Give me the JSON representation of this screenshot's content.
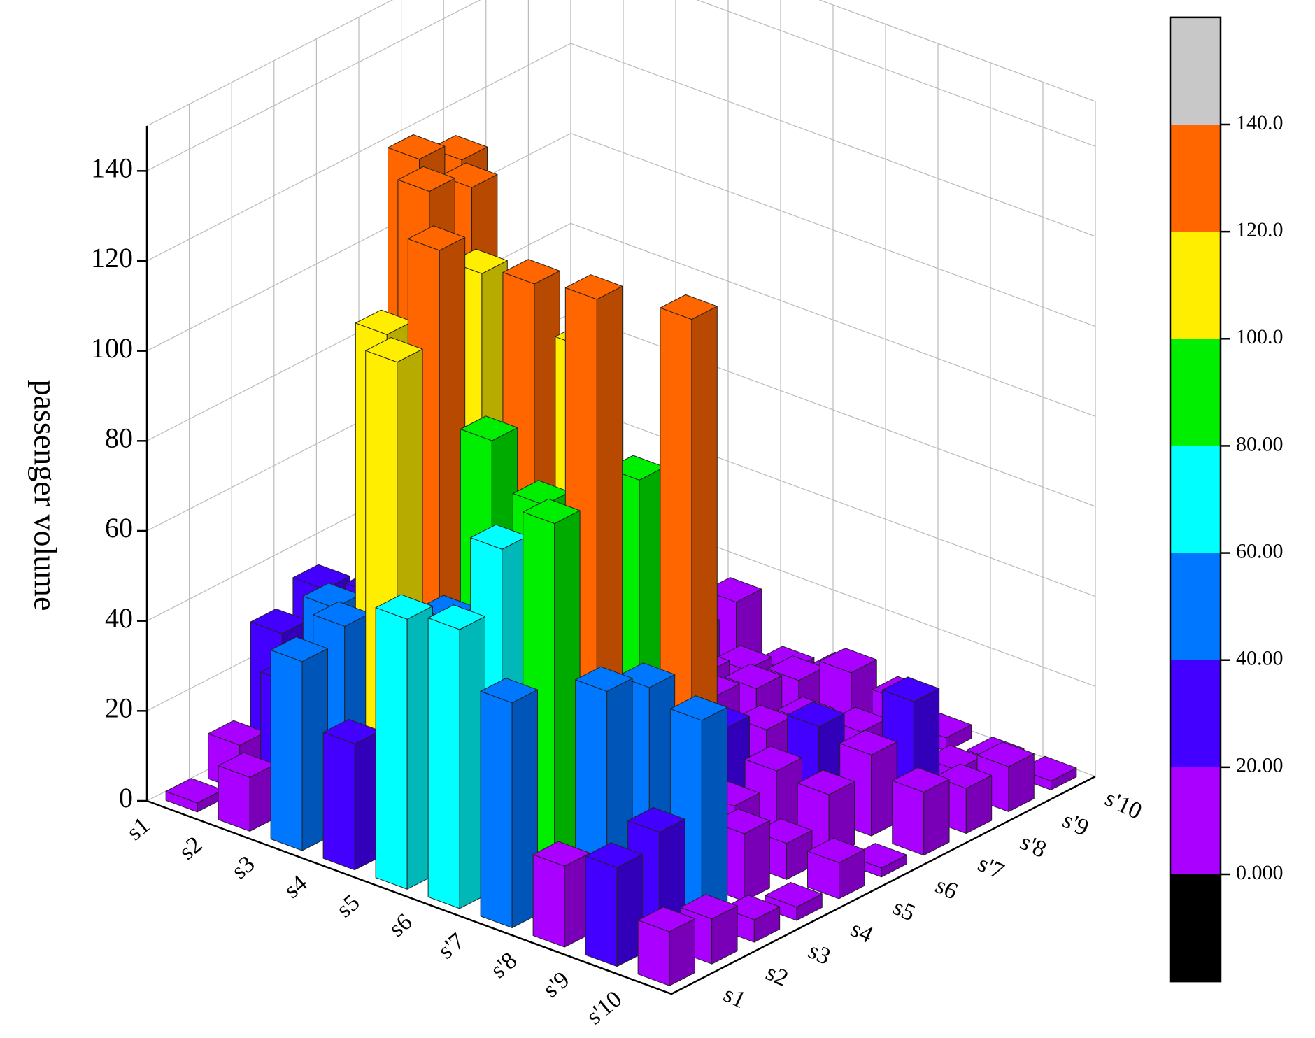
{
  "chart_data": {
    "type": "bar3d",
    "z_label": "passenger volume",
    "row_categories": [
      "s1",
      "s2",
      "s3",
      "s4",
      "s5",
      "s6",
      "s'7",
      "s'8",
      "s'9",
      "s'10"
    ],
    "col_categories": [
      "s1",
      "s2",
      "s3",
      "s4",
      "s5",
      "s6",
      "s'7",
      "s'8",
      "s'9",
      "s'10"
    ],
    "values": [
      [
        2,
        10,
        30,
        35,
        20,
        15,
        18,
        15,
        10,
        5
      ],
      [
        12,
        28,
        40,
        38,
        130,
        125,
        30,
        18,
        12,
        8
      ],
      [
        42,
        45,
        105,
        132,
        128,
        60,
        20,
        15,
        10,
        6
      ],
      [
        28,
        108,
        128,
        118,
        70,
        25,
        18,
        12,
        14,
        16
      ],
      [
        60,
        55,
        90,
        120,
        45,
        20,
        16,
        14,
        10,
        5
      ],
      [
        62,
        75,
        80,
        110,
        40,
        22,
        18,
        15,
        12,
        8
      ],
      [
        50,
        85,
        130,
        85,
        30,
        20,
        15,
        12,
        18,
        4
      ],
      [
        18,
        52,
        48,
        125,
        12,
        15,
        20,
        14,
        16,
        3
      ],
      [
        22,
        25,
        45,
        15,
        8,
        14,
        18,
        25,
        5,
        2
      ],
      [
        12,
        10,
        5,
        3,
        8,
        2,
        14,
        10,
        10,
        2
      ]
    ],
    "zlim": [
      0,
      150
    ],
    "zticks": [
      0,
      20,
      40,
      60,
      80,
      100,
      120,
      140
    ],
    "grid": true,
    "colorbar_ticks": [
      {
        "value": 0,
        "label": "0.000"
      },
      {
        "value": 20,
        "label": "20.00"
      },
      {
        "value": 40,
        "label": "40.00"
      },
      {
        "value": 60,
        "label": "60.00"
      },
      {
        "value": 80,
        "label": "80.00"
      },
      {
        "value": 100,
        "label": "100.0"
      },
      {
        "value": 120,
        "label": "120.0"
      },
      {
        "value": 140,
        "label": "140.0"
      }
    ],
    "colorbar_colors": [
      "#000000",
      "#aa00ff",
      "#4400ff",
      "#0077ff",
      "#00ffff",
      "#00ee00",
      "#ffee00",
      "#ff6600",
      "#c8c8c8"
    ]
  }
}
